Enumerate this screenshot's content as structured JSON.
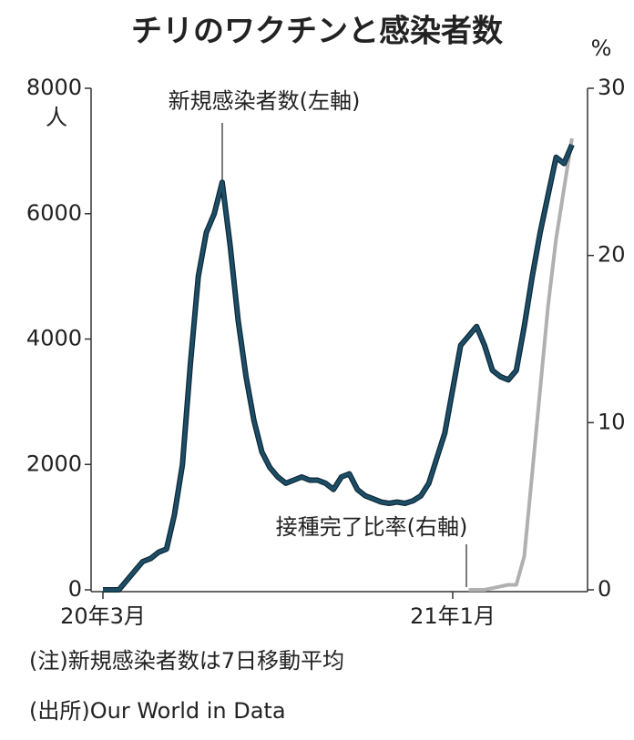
{
  "chart_data": {
    "type": "line",
    "title": "チリのワクチンと感染者数",
    "y_unit": "人",
    "y2_unit": "%",
    "categories": [
      "20年3月",
      null,
      null,
      null,
      null,
      null,
      null,
      null,
      null,
      null,
      null,
      null,
      null,
      null,
      null,
      null,
      null,
      null,
      null,
      null,
      null,
      null,
      null,
      null,
      null,
      null,
      null,
      null,
      null,
      null,
      null,
      null,
      null,
      null,
      null,
      null,
      null,
      null,
      null,
      null,
      null,
      null,
      null,
      null,
      "21年1月",
      null,
      null,
      null,
      null,
      null,
      null,
      null,
      null,
      null,
      null,
      null,
      null,
      null,
      null,
      null
    ],
    "series": [
      {
        "name": "新規感染者数(左軸)",
        "color": "#1d4e66",
        "axis": "y",
        "values": [
          0,
          0,
          0,
          150,
          300,
          450,
          500,
          600,
          650,
          1200,
          2000,
          3600,
          5000,
          5700,
          6000,
          6500,
          5500,
          4300,
          3400,
          2700,
          2200,
          1950,
          1800,
          1700,
          1750,
          1800,
          1750,
          1750,
          1700,
          1600,
          1800,
          1850,
          1600,
          1500,
          1450,
          1400,
          1380,
          1400,
          1380,
          1420,
          1500,
          1700,
          2100,
          2500,
          3200,
          3900,
          4050,
          4200,
          3900,
          3500,
          3400,
          3350,
          3500,
          4200,
          5000,
          5700,
          6300,
          6900,
          6800,
          7100
        ]
      },
      {
        "name": "接種完了比率(右軸)",
        "color": "#b0b0b0",
        "axis": "y2",
        "values": [
          null,
          null,
          null,
          null,
          null,
          null,
          null,
          null,
          null,
          null,
          null,
          null,
          null,
          null,
          null,
          null,
          null,
          null,
          null,
          null,
          null,
          null,
          null,
          null,
          null,
          null,
          null,
          null,
          null,
          null,
          null,
          null,
          null,
          null,
          null,
          null,
          null,
          null,
          null,
          null,
          null,
          null,
          null,
          null,
          null,
          null,
          0,
          0,
          0,
          0.1,
          0.2,
          0.3,
          0.3,
          2,
          7,
          12,
          17,
          21,
          24,
          27
        ]
      }
    ],
    "ylim": [
      0,
      8000
    ],
    "yticks": [
      0,
      2000,
      4000,
      6000,
      8000
    ],
    "y2lim": [
      0,
      30
    ],
    "y2ticks": [
      0,
      10,
      20,
      30
    ],
    "notes": [
      "(注)新規感染者数は7日移動平均",
      "(出所)Our World in Data"
    ]
  }
}
